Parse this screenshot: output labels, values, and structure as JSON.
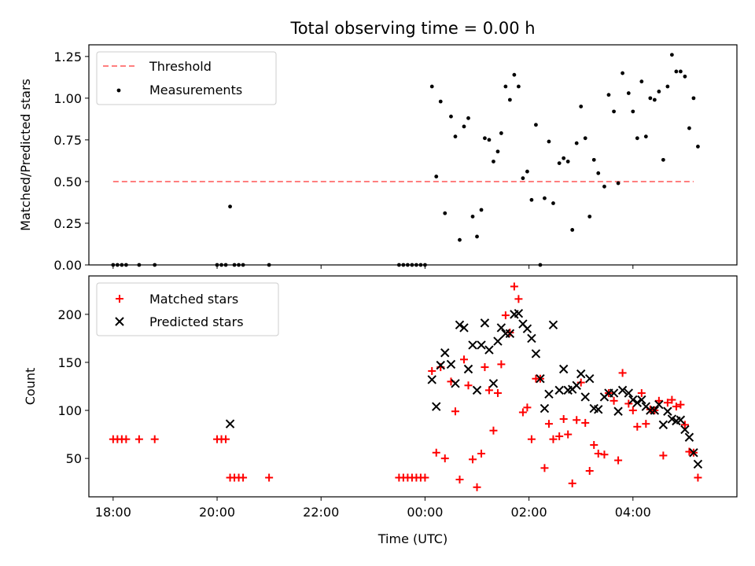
{
  "figure": {
    "title": "Total observing time = 0.00 h",
    "xlabel": "Time (UTC)"
  },
  "chart_data": [
    {
      "type": "scatter",
      "name": "ratio",
      "title": "Total observing time = 0.00 h",
      "ylabel": "Matched/Predicted stars",
      "xlabel": "",
      "x_unit": "hours (UTC, 18:00 on day 1 to ~05:20 on day 2)",
      "xlim": [
        "17:32",
        "06:00"
      ],
      "ylim": [
        0,
        1.32
      ],
      "yticks": [
        "0.00",
        "0.25",
        "0.50",
        "0.75",
        "1.00",
        "1.25"
      ],
      "legend_position": "upper left",
      "threshold": {
        "name": "Threshold",
        "value": 0.5,
        "x_start": "18:00",
        "x_end": "05:10",
        "color": "#ff7f7f",
        "style": "dashed"
      },
      "series": [
        {
          "name": "Measurements",
          "color": "#000000",
          "marker": "dot",
          "points": [
            [
              "18:00",
              0
            ],
            [
              "18:05",
              0
            ],
            [
              "18:10",
              0
            ],
            [
              "18:15",
              0
            ],
            [
              "18:30",
              0
            ],
            [
              "18:48",
              0
            ],
            [
              "20:00",
              0
            ],
            [
              "20:05",
              0
            ],
            [
              "20:10",
              0
            ],
            [
              "20:15",
              0.35
            ],
            [
              "20:20",
              0
            ],
            [
              "20:25",
              0
            ],
            [
              "20:30",
              0
            ],
            [
              "21:00",
              0
            ],
            [
              "23:30",
              0
            ],
            [
              "23:35",
              0
            ],
            [
              "23:40",
              0
            ],
            [
              "23:45",
              0
            ],
            [
              "23:50",
              0
            ],
            [
              "23:55",
              0
            ],
            [
              "00:00",
              0
            ],
            [
              "00:08",
              1.07
            ],
            [
              "00:13",
              0.53
            ],
            [
              "00:18",
              0.98
            ],
            [
              "00:23",
              0.31
            ],
            [
              "00:30",
              0.89
            ],
            [
              "00:35",
              0.77
            ],
            [
              "00:40",
              0.15
            ],
            [
              "00:45",
              0.83
            ],
            [
              "00:50",
              0.88
            ],
            [
              "00:55",
              0.29
            ],
            [
              "01:00",
              0.17
            ],
            [
              "01:05",
              0.33
            ],
            [
              "01:09",
              0.76
            ],
            [
              "01:14",
              0.75
            ],
            [
              "01:19",
              0.62
            ],
            [
              "01:24",
              0.68
            ],
            [
              "01:28",
              0.79
            ],
            [
              "01:33",
              1.07
            ],
            [
              "01:38",
              0.99
            ],
            [
              "01:43",
              1.14
            ],
            [
              "01:48",
              1.07
            ],
            [
              "01:53",
              0.52
            ],
            [
              "01:58",
              0.56
            ],
            [
              "02:03",
              0.39
            ],
            [
              "02:08",
              0.84
            ],
            [
              "02:13",
              0
            ],
            [
              "02:18",
              0.4
            ],
            [
              "02:23",
              0.74
            ],
            [
              "02:28",
              0.37
            ],
            [
              "02:35",
              0.61
            ],
            [
              "02:40",
              0.64
            ],
            [
              "02:45",
              0.62
            ],
            [
              "02:50",
              0.21
            ],
            [
              "02:55",
              0.73
            ],
            [
              "03:00",
              0.95
            ],
            [
              "03:05",
              0.76
            ],
            [
              "03:10",
              0.29
            ],
            [
              "03:15",
              0.63
            ],
            [
              "03:20",
              0.55
            ],
            [
              "03:27",
              0.47
            ],
            [
              "03:32",
              1.02
            ],
            [
              "03:38",
              0.92
            ],
            [
              "03:43",
              0.49
            ],
            [
              "03:48",
              1.15
            ],
            [
              "03:55",
              1.03
            ],
            [
              "04:00",
              0.92
            ],
            [
              "04:05",
              0.76
            ],
            [
              "04:10",
              1.1
            ],
            [
              "04:15",
              0.77
            ],
            [
              "04:20",
              1.0
            ],
            [
              "04:25",
              0.99
            ],
            [
              "04:30",
              1.04
            ],
            [
              "04:35",
              0.63
            ],
            [
              "04:40",
              1.07
            ],
            [
              "04:45",
              1.26
            ],
            [
              "04:50",
              1.16
            ],
            [
              "04:55",
              1.16
            ],
            [
              "05:00",
              1.13
            ],
            [
              "05:05",
              0.82
            ],
            [
              "05:10",
              1.0
            ],
            [
              "05:15",
              0.71
            ]
          ]
        }
      ]
    },
    {
      "type": "scatter",
      "name": "counts",
      "title": "",
      "ylabel": "Count",
      "xlabel": "Time (UTC)",
      "xlim": [
        "17:32",
        "06:00"
      ],
      "ylim": [
        10,
        240
      ],
      "xticks": [
        "18:00",
        "20:00",
        "22:00",
        "00:00",
        "02:00",
        "04:00"
      ],
      "yticks": [
        "50",
        "100",
        "150",
        "200"
      ],
      "legend_position": "upper left",
      "series": [
        {
          "name": "Matched stars",
          "color": "#ff0000",
          "marker": "plus",
          "points": [
            [
              "18:00",
              70
            ],
            [
              "18:05",
              70
            ],
            [
              "18:10",
              70
            ],
            [
              "18:15",
              70
            ],
            [
              "18:30",
              70
            ],
            [
              "18:48",
              70
            ],
            [
              "20:00",
              70
            ],
            [
              "20:05",
              70
            ],
            [
              "20:10",
              70
            ],
            [
              "20:15",
              30
            ],
            [
              "20:20",
              30
            ],
            [
              "20:25",
              30
            ],
            [
              "20:30",
              30
            ],
            [
              "21:00",
              30
            ],
            [
              "23:30",
              30
            ],
            [
              "23:35",
              30
            ],
            [
              "23:40",
              30
            ],
            [
              "23:45",
              30
            ],
            [
              "23:50",
              30
            ],
            [
              "23:55",
              30
            ],
            [
              "00:00",
              30
            ],
            [
              "00:08",
              141
            ],
            [
              "00:13",
              56
            ],
            [
              "00:18",
              145
            ],
            [
              "00:23",
              50
            ],
            [
              "00:30",
              130
            ],
            [
              "00:35",
              99
            ],
            [
              "00:40",
              28
            ],
            [
              "00:45",
              153
            ],
            [
              "00:50",
              126
            ],
            [
              "00:55",
              49
            ],
            [
              "01:00",
              20
            ],
            [
              "01:05",
              55
            ],
            [
              "01:09",
              145
            ],
            [
              "01:14",
              121
            ],
            [
              "01:19",
              79
            ],
            [
              "01:24",
              118
            ],
            [
              "01:28",
              148
            ],
            [
              "01:33",
              199
            ],
            [
              "01:38",
              181
            ],
            [
              "01:43",
              229
            ],
            [
              "01:48",
              216
            ],
            [
              "01:53",
              98
            ],
            [
              "01:58",
              103
            ],
            [
              "02:03",
              70
            ],
            [
              "02:08",
              133
            ],
            [
              "02:13",
              133
            ],
            [
              "02:18",
              40
            ],
            [
              "02:23",
              86
            ],
            [
              "02:28",
              70
            ],
            [
              "02:35",
              73
            ],
            [
              "02:40",
              91
            ],
            [
              "02:45",
              75
            ],
            [
              "02:50",
              24
            ],
            [
              "02:55",
              90
            ],
            [
              "03:00",
              129
            ],
            [
              "03:05",
              87
            ],
            [
              "03:10",
              37
            ],
            [
              "03:15",
              64
            ],
            [
              "03:20",
              55
            ],
            [
              "03:27",
              54
            ],
            [
              "03:32",
              118
            ],
            [
              "03:38",
              110
            ],
            [
              "03:43",
              48
            ],
            [
              "03:48",
              139
            ],
            [
              "03:55",
              107
            ],
            [
              "04:00",
              100
            ],
            [
              "04:05",
              83
            ],
            [
              "04:10",
              118
            ],
            [
              "04:15",
              86
            ],
            [
              "04:20",
              101
            ],
            [
              "04:25",
              100
            ],
            [
              "04:30",
              110
            ],
            [
              "04:35",
              53
            ],
            [
              "04:40",
              108
            ],
            [
              "04:45",
              111
            ],
            [
              "04:50",
              104
            ],
            [
              "04:55",
              106
            ],
            [
              "05:00",
              85
            ],
            [
              "05:05",
              57
            ],
            [
              "05:10",
              56
            ],
            [
              "05:15",
              30
            ]
          ]
        },
        {
          "name": "Predicted stars",
          "color": "#000000",
          "marker": "x",
          "points": [
            [
              "20:15",
              86
            ],
            [
              "00:08",
              132
            ],
            [
              "00:13",
              104
            ],
            [
              "00:18",
              147
            ],
            [
              "00:23",
              160
            ],
            [
              "00:30",
              148
            ],
            [
              "00:35",
              128
            ],
            [
              "00:40",
              189
            ],
            [
              "00:45",
              186
            ],
            [
              "00:50",
              143
            ],
            [
              "00:55",
              168
            ],
            [
              "01:00",
              121
            ],
            [
              "01:05",
              168
            ],
            [
              "01:09",
              191
            ],
            [
              "01:14",
              163
            ],
            [
              "01:19",
              128
            ],
            [
              "01:24",
              172
            ],
            [
              "01:28",
              186
            ],
            [
              "01:33",
              180
            ],
            [
              "01:38",
              180
            ],
            [
              "01:43",
              200
            ],
            [
              "01:48",
              201
            ],
            [
              "01:53",
              190
            ],
            [
              "01:58",
              185
            ],
            [
              "02:03",
              175
            ],
            [
              "02:08",
              159
            ],
            [
              "02:13",
              133
            ],
            [
              "02:18",
              102
            ],
            [
              "02:23",
              117
            ],
            [
              "02:28",
              189
            ],
            [
              "02:35",
              121
            ],
            [
              "02:40",
              143
            ],
            [
              "02:45",
              121
            ],
            [
              "02:50",
              122
            ],
            [
              "02:55",
              126
            ],
            [
              "03:00",
              138
            ],
            [
              "03:05",
              114
            ],
            [
              "03:10",
              133
            ],
            [
              "03:15",
              102
            ],
            [
              "03:20",
              101
            ],
            [
              "03:27",
              114
            ],
            [
              "03:32",
              118
            ],
            [
              "03:38",
              118
            ],
            [
              "03:43",
              99
            ],
            [
              "03:48",
              121
            ],
            [
              "03:55",
              118
            ],
            [
              "04:00",
              111
            ],
            [
              "04:05",
              108
            ],
            [
              "04:10",
              111
            ],
            [
              "04:15",
              104
            ],
            [
              "04:20",
              100
            ],
            [
              "04:25",
              100
            ],
            [
              "04:30",
              106
            ],
            [
              "04:35",
              85
            ],
            [
              "04:40",
              99
            ],
            [
              "04:45",
              91
            ],
            [
              "04:50",
              89
            ],
            [
              "04:55",
              90
            ],
            [
              "05:00",
              80
            ],
            [
              "05:05",
              72
            ],
            [
              "05:10",
              56
            ],
            [
              "05:15",
              44
            ]
          ]
        }
      ]
    }
  ]
}
